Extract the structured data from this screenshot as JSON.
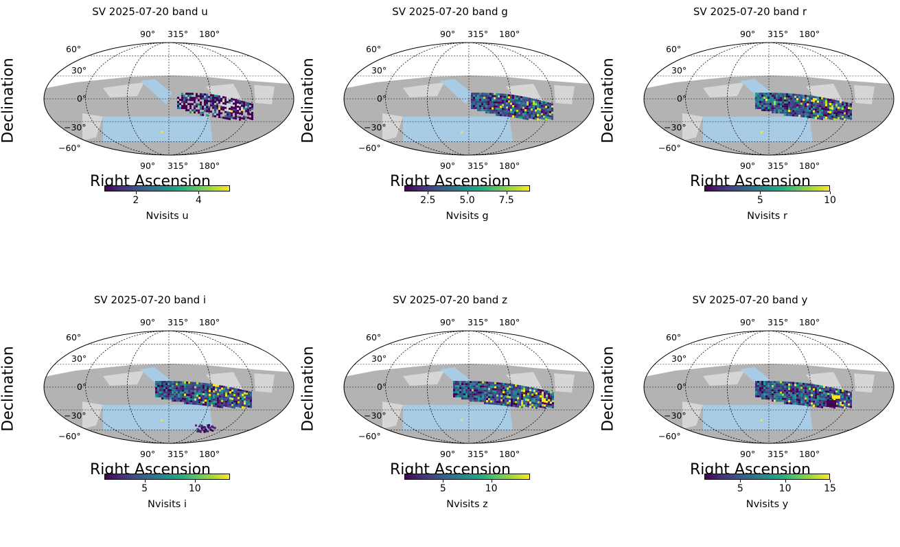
{
  "figure": {
    "panels": [
      {
        "title": "SV 2025-07-20 band u",
        "cbar_label": "Nvisits u",
        "cbar_range": [
          1,
          5
        ],
        "cbar_ticks": [
          "2",
          "4"
        ],
        "cbar_tick_values": [
          2,
          4
        ]
      },
      {
        "title": "SV 2025-07-20 band g",
        "cbar_label": "Nvisits g",
        "cbar_range": [
          1,
          9
        ],
        "cbar_ticks": [
          "2.5",
          "5.0",
          "7.5"
        ],
        "cbar_tick_values": [
          2.5,
          5.0,
          7.5
        ]
      },
      {
        "title": "SV 2025-07-20 band r",
        "cbar_label": "Nvisits r",
        "cbar_range": [
          1,
          10
        ],
        "cbar_ticks": [
          "5",
          "10"
        ],
        "cbar_tick_values": [
          5,
          10
        ]
      },
      {
        "title": "SV 2025-07-20 band i",
        "cbar_label": "Nvisits i",
        "cbar_range": [
          1,
          13.5
        ],
        "cbar_ticks": [
          "5",
          "10"
        ],
        "cbar_tick_values": [
          5,
          10
        ]
      },
      {
        "title": "SV 2025-07-20 band z",
        "cbar_label": "Nvisits z",
        "cbar_range": [
          1,
          14
        ],
        "cbar_ticks": [
          "5",
          "10"
        ],
        "cbar_tick_values": [
          5,
          10
        ]
      },
      {
        "title": "SV 2025-07-20 band y",
        "cbar_label": "Nvisits y",
        "cbar_range": [
          1,
          15
        ],
        "cbar_ticks": [
          "5",
          "10",
          "15"
        ],
        "cbar_tick_values": [
          5,
          10,
          15
        ]
      }
    ],
    "axes": {
      "ylabel": "Declination",
      "xlabel": "Right Ascension",
      "lat_ticks": [
        "60°",
        "30°",
        "0°",
        "−30°",
        "−60°"
      ],
      "lon_ticks": [
        "90°",
        "315°",
        "180°"
      ]
    }
  },
  "chart_data": {
    "type": "heatmap",
    "projection": "mollweide",
    "colormap": "viridis",
    "quantity": "Nvisits",
    "bands": [
      "u",
      "g",
      "r",
      "i",
      "z",
      "y"
    ],
    "date": "2025-07-20",
    "lat_gridlines_deg": [
      -60,
      -30,
      0,
      30,
      60
    ],
    "footprint_colors": {
      "background_region": "#b3b3b3",
      "light_region": "#d6d6d6",
      "survey_footprint": "#a8cce6"
    },
    "colorbar_ranges": {
      "u": [
        1,
        5
      ],
      "g": [
        1,
        9
      ],
      "r": [
        1,
        10
      ],
      "i": [
        1,
        13.5
      ],
      "z": [
        1,
        14
      ],
      "y": [
        1,
        15
      ]
    }
  }
}
